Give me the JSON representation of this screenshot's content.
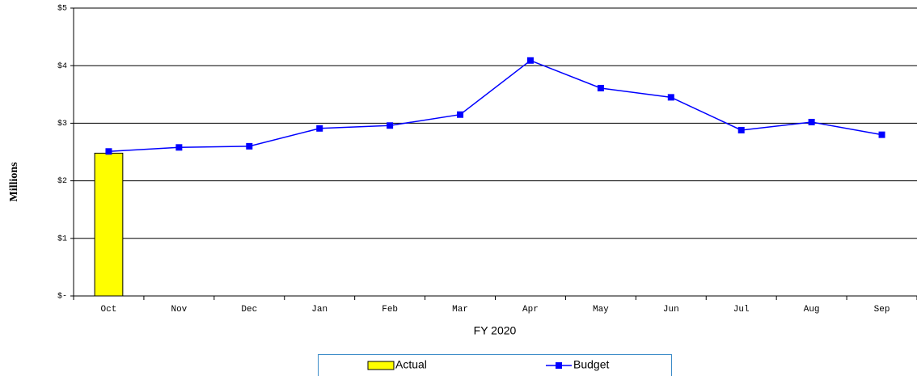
{
  "chart_data": {
    "type": "bar",
    "categories": [
      "Oct",
      "Nov",
      "Dec",
      "Jan",
      "Feb",
      "Mar",
      "Apr",
      "May",
      "Jun",
      "Jul",
      "Aug",
      "Sep"
    ],
    "series": [
      {
        "name": "Actual",
        "type": "bar",
        "color": "#ffff00",
        "values": [
          2.48,
          null,
          null,
          null,
          null,
          null,
          null,
          null,
          null,
          null,
          null,
          null
        ]
      },
      {
        "name": "Budget",
        "type": "line",
        "color": "#0000ff",
        "values": [
          2.51,
          2.58,
          2.6,
          2.91,
          2.96,
          3.15,
          4.09,
          3.61,
          3.45,
          2.88,
          3.02,
          2.8
        ]
      }
    ],
    "xlabel": "FY 2020",
    "ylabel": "Millions",
    "ylim": [
      0,
      5
    ],
    "yticks": [
      {
        "value": 0,
        "label": "$-"
      },
      {
        "value": 1,
        "label": "$1"
      },
      {
        "value": 2,
        "label": "$2"
      },
      {
        "value": 3,
        "label": "$3"
      },
      {
        "value": 4,
        "label": "$4"
      },
      {
        "value": 5,
        "label": "$5"
      }
    ],
    "grid": true,
    "legend": "bottom"
  }
}
